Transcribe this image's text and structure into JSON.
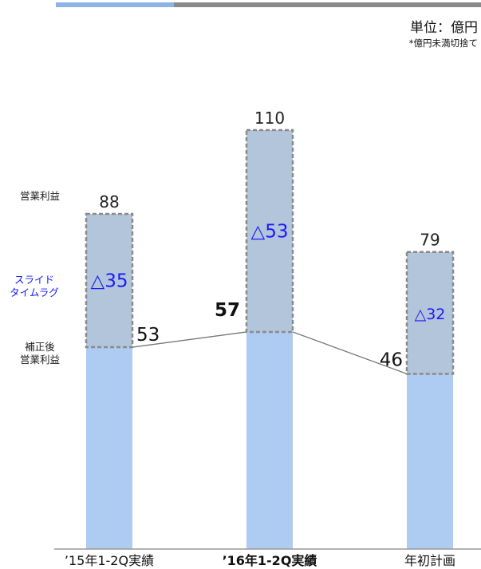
{
  "header": {
    "unit_label": "単位：億円",
    "note": "*億円未満切捨て"
  },
  "side_labels": {
    "operating_profit": "営業利益",
    "slide_time_lag_line1": "スライド",
    "slide_time_lag_line2": "タイムラグ",
    "adjusted_line1": "補正後",
    "adjusted_line2": "営業利益"
  },
  "colors": {
    "bar_blue": "#aecbf1",
    "lag_fill": "#b3c5da",
    "lag_border": "#8a8a8a",
    "lag_text": "#1a1aff",
    "accent_bar": "#8cb2e6",
    "connector": "#777777"
  },
  "chart_data": {
    "type": "bar",
    "stacked": true,
    "categories": [
      "’15年1-2Q実績",
      "’16年1-2Q実績",
      "年初計画"
    ],
    "bold_category_index": 1,
    "series": [
      {
        "values": [
          53,
          57,
          46
        ]
      },
      {
        "values": [
          35,
          53,
          32
        ]
      }
    ],
    "adjusted_labels": [
      "53",
      "57",
      "46"
    ],
    "lag_labels": [
      "△35",
      "△53",
      "△32"
    ],
    "total_labels": [
      "88",
      "110",
      "79"
    ],
    "ylim": [
      0,
      110
    ]
  }
}
